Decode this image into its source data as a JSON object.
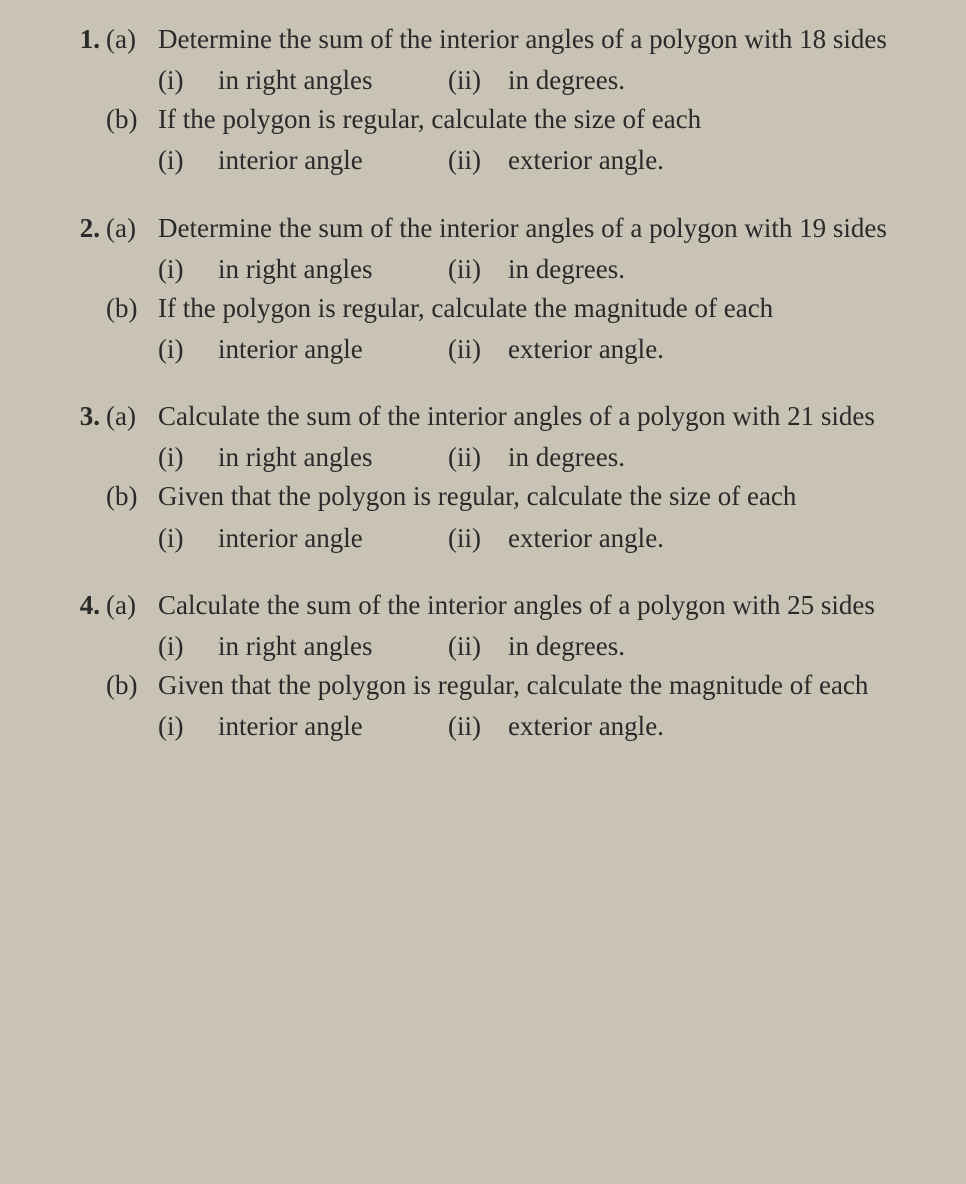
{
  "questions": [
    {
      "num": "1.",
      "parts": [
        {
          "label": "(a)",
          "prompt": "Determine the sum of the interior angles of a polygon with 18 sides",
          "subs": {
            "i_label": "(i)",
            "i_text": "in right angles",
            "ii_label": "(ii)",
            "ii_text": "in degrees."
          }
        },
        {
          "label": "(b)",
          "prompt": "If the polygon is regular, calculate the size of each",
          "subs": {
            "i_label": "(i)",
            "i_text": "interior angle",
            "ii_label": "(ii)",
            "ii_text": "exterior angle."
          }
        }
      ]
    },
    {
      "num": "2.",
      "parts": [
        {
          "label": "(a)",
          "prompt": "Determine the sum of the interior angles of a polygon with 19 sides",
          "subs": {
            "i_label": "(i)",
            "i_text": "in right angles",
            "ii_label": "(ii)",
            "ii_text": "in degrees."
          }
        },
        {
          "label": "(b)",
          "prompt": "If the polygon is regular, calculate the magnitude of each",
          "subs": {
            "i_label": "(i)",
            "i_text": "interior angle",
            "ii_label": "(ii)",
            "ii_text": "exterior angle."
          }
        }
      ]
    },
    {
      "num": "3.",
      "parts": [
        {
          "label": "(a)",
          "prompt": "Calculate the sum of the interior angles of a polygon with 21 sides",
          "subs": {
            "i_label": "(i)",
            "i_text": "in right angles",
            "ii_label": "(ii)",
            "ii_text": "in degrees."
          }
        },
        {
          "label": "(b)",
          "prompt": "Given that the polygon is regular, calculate the size of each",
          "subs": {
            "i_label": "(i)",
            "i_text": "interior angle",
            "ii_label": "(ii)",
            "ii_text": "exterior angle."
          }
        }
      ]
    },
    {
      "num": "4.",
      "parts": [
        {
          "label": "(a)",
          "prompt": "Calculate the sum of the interior angles of a polygon with 25 sides",
          "subs": {
            "i_label": "(i)",
            "i_text": "in right angles",
            "ii_label": "(ii)",
            "ii_text": "in degrees."
          }
        },
        {
          "label": "(b)",
          "prompt": "Given that the polygon is regular, calculate the magnitude of each",
          "subs": {
            "i_label": "(i)",
            "i_text": "interior angle",
            "ii_label": "(ii)",
            "ii_text": "exterior angle."
          }
        }
      ]
    }
  ]
}
